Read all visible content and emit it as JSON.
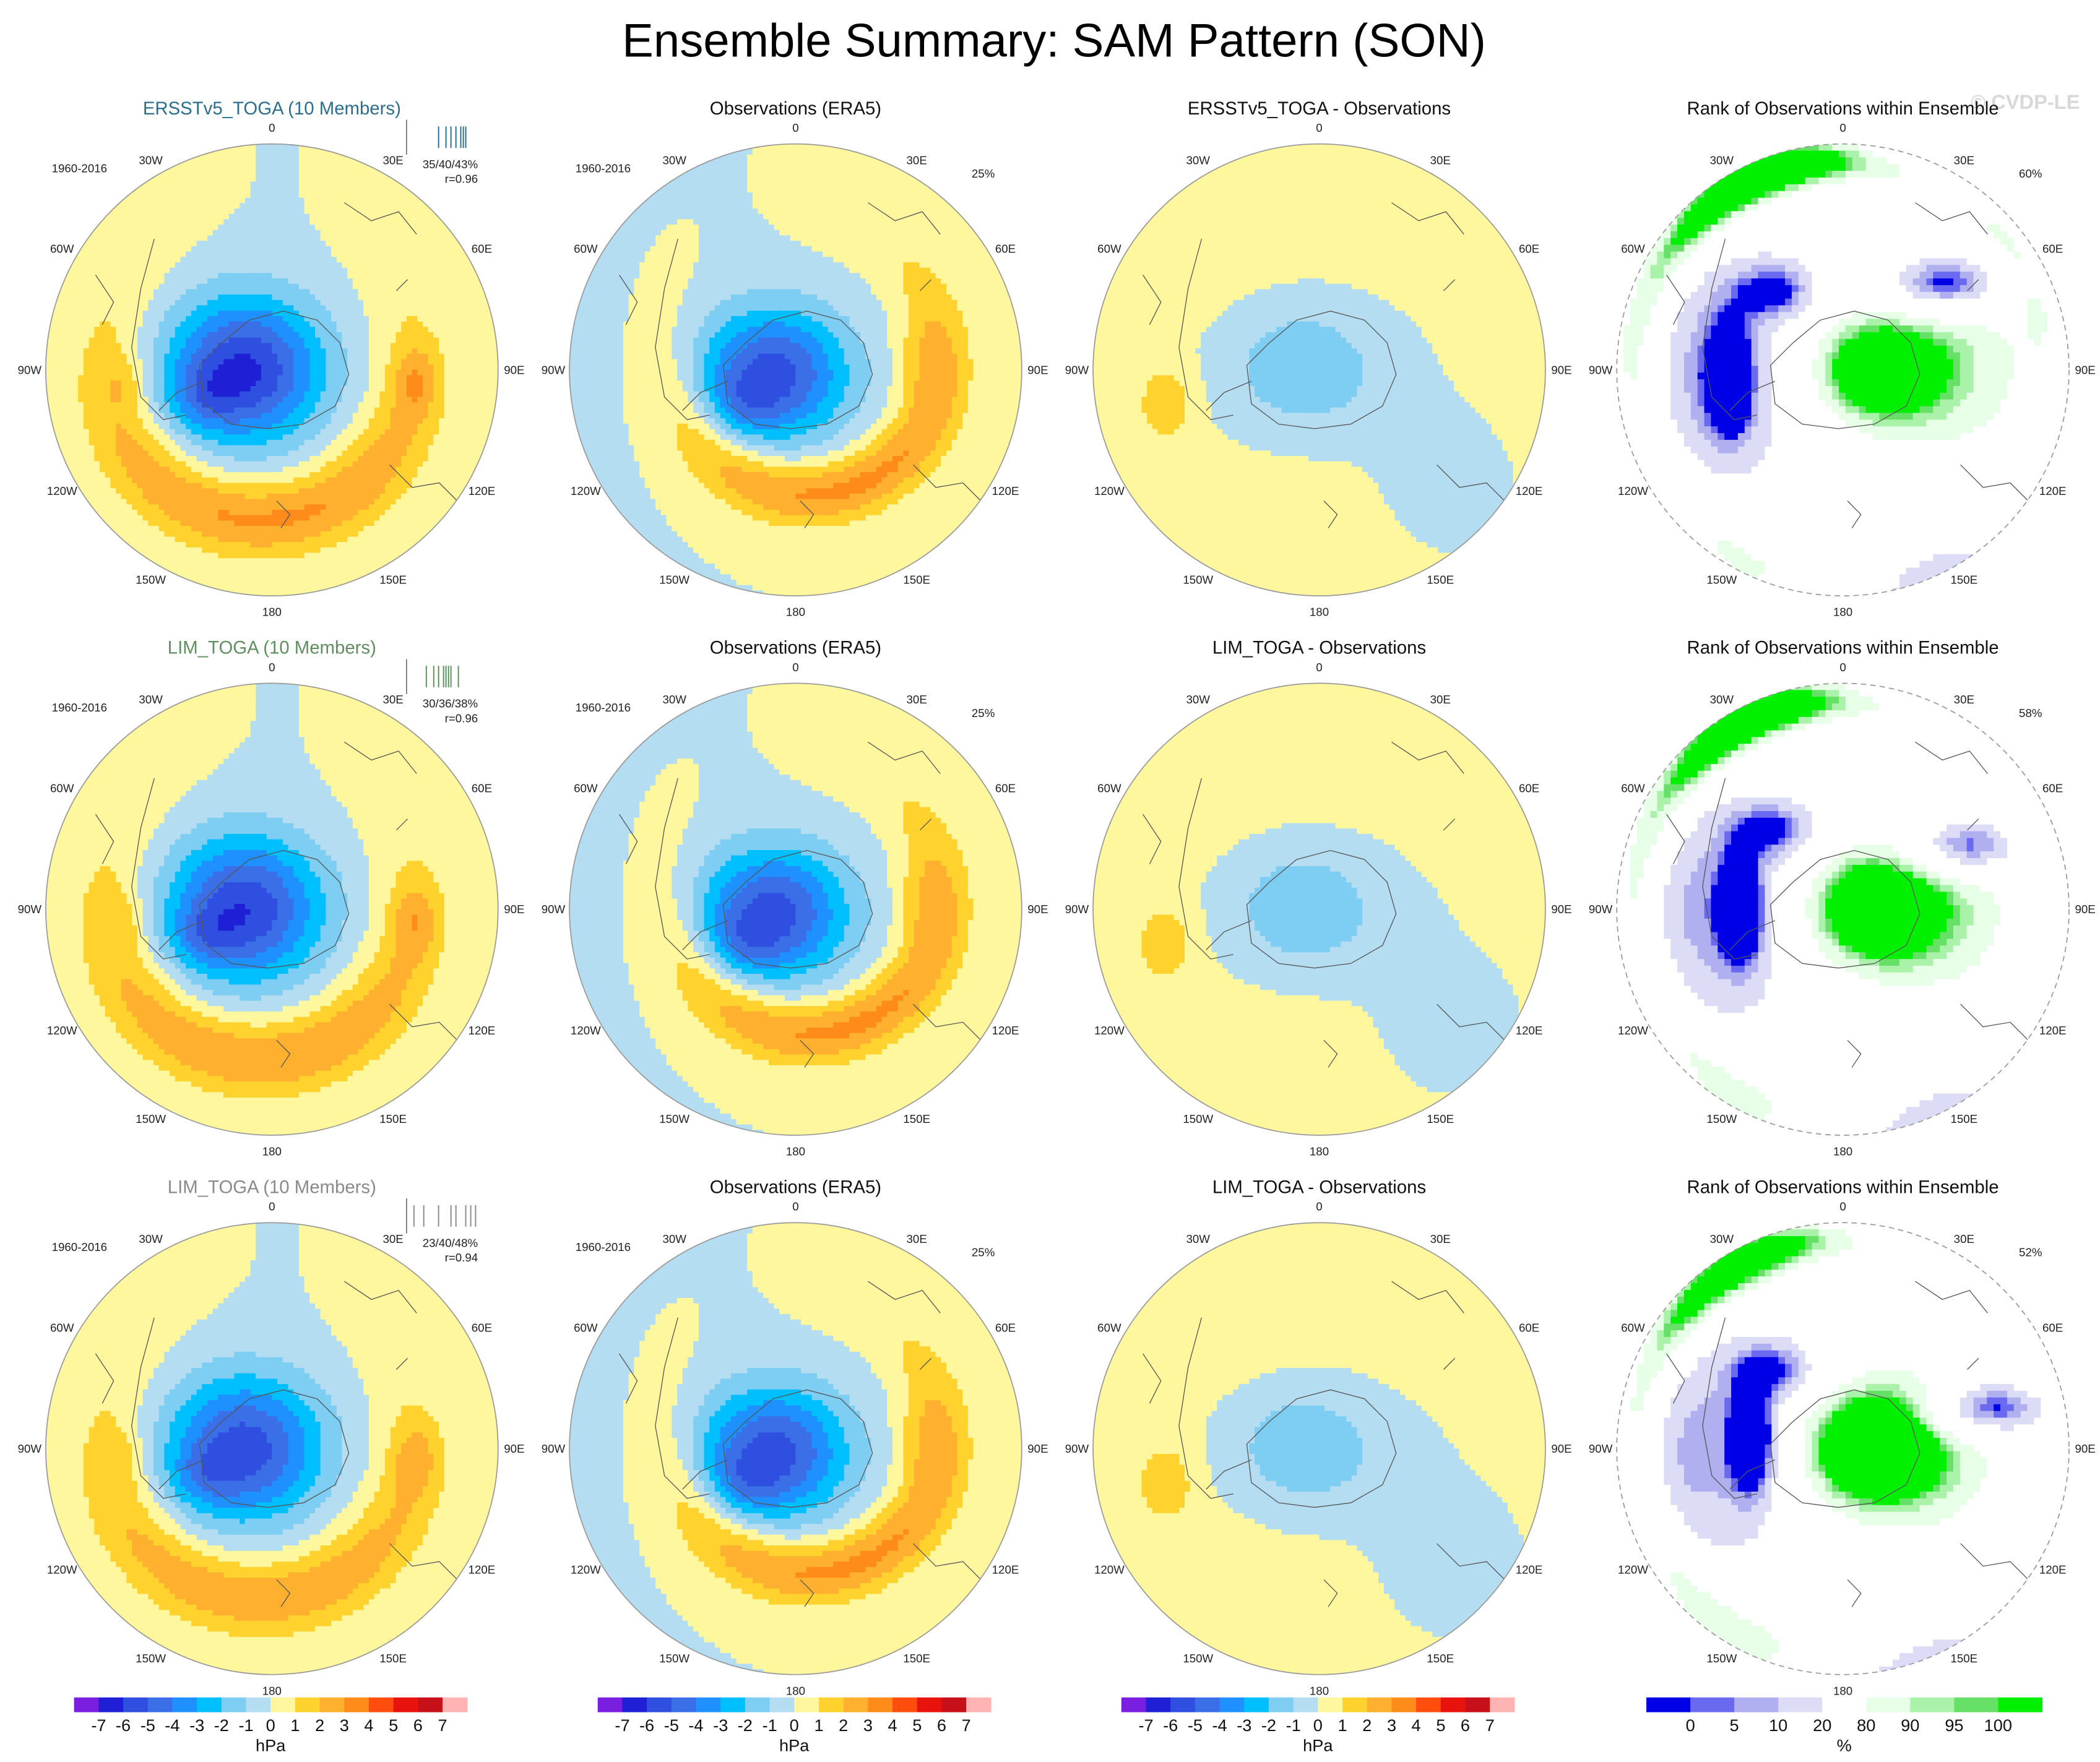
{
  "title": "Ensemble Summary: SAM Pattern (SON)",
  "watermark": "© CVDP-LE",
  "colors": {
    "ensemble_title_row1": "#2b6e8f",
    "ensemble_title_row2": "#5f8f5f",
    "ensemble_title_row3": "#8a8a8a",
    "hpa_scale": [
      "#7a1ee0",
      "#1f1fd6",
      "#2f4fe0",
      "#3a6fe8",
      "#1e90ff",
      "#00bfff",
      "#7ecdf2",
      "#b4ddf2",
      "#fff79e",
      "#ffd22e",
      "#ffb02e",
      "#ff8c1a",
      "#ff4d0d",
      "#e8130d",
      "#c8101a",
      "#ffb3b3"
    ],
    "pct_scale": [
      "#0000e6",
      "#6a6af0",
      "#b0b0f0",
      "#dcdcf7",
      "#ffffff",
      "#e6ffe6",
      "#aaf2aa",
      "#66e066",
      "#00f000"
    ]
  },
  "longitude_labels": [
    "0",
    "30E",
    "60E",
    "90E",
    "120E",
    "150E",
    "180",
    "150W",
    "120W",
    "90W",
    "60W",
    "30W"
  ],
  "chart_data": [
    {
      "type": "polar-map",
      "row": 1,
      "panels": [
        {
          "title": "ERSSTv5_TOGA (10 Members)",
          "period": "1960-2016",
          "stats": "35/40/43%",
          "corr": "r=0.96",
          "pattern": "model",
          "amp": 1.0,
          "member_ticks": [
            33,
            36,
            38,
            40,
            42,
            43,
            44
          ]
        },
        {
          "title": "Observations (ERA5)",
          "period": "1960-2016",
          "pct": "25%",
          "pattern": "obs"
        },
        {
          "title": "ERSSTv5_TOGA - Observations",
          "pattern": "diff",
          "variant": 1
        },
        {
          "title": "Rank of Observations within Ensemble",
          "pct": "60%",
          "pattern": "rank",
          "variant": 1
        }
      ]
    },
    {
      "type": "polar-map",
      "row": 2,
      "panels": [
        {
          "title": "LIM_TOGA (10 Members)",
          "period": "1960-2016",
          "stats": "30/36/38%",
          "corr": "r=0.96",
          "pattern": "model",
          "amp": 0.95,
          "member_ticks": [
            28,
            31,
            33,
            35,
            36,
            37,
            38,
            41
          ]
        },
        {
          "title": "Observations (ERA5)",
          "period": "1960-2016",
          "pct": "25%",
          "pattern": "obs"
        },
        {
          "title": "LIM_TOGA - Observations",
          "pattern": "diff",
          "variant": 2
        },
        {
          "title": "Rank of Observations within Ensemble",
          "pct": "58%",
          "pattern": "rank",
          "variant": 2
        }
      ]
    },
    {
      "type": "polar-map",
      "row": 3,
      "panels": [
        {
          "title": "LIM_TOGA (10 Members)",
          "period": "1960-2016",
          "stats": "23/40/48%",
          "corr": "r=0.94",
          "pattern": "model",
          "amp": 0.9,
          "member_ticks": [
            23,
            27,
            33,
            38,
            40,
            44,
            46,
            48
          ]
        },
        {
          "title": "Observations (ERA5)",
          "period": "1960-2016",
          "pct": "25%",
          "pattern": "obs"
        },
        {
          "title": "LIM_TOGA - Observations",
          "pattern": "diff",
          "variant": 3
        },
        {
          "title": "Rank of Observations within Ensemble",
          "pct": "52%",
          "pattern": "rank",
          "variant": 3
        }
      ]
    }
  ],
  "colorbars": [
    {
      "unit": "hPa",
      "tick_labels": [
        "-7",
        "-6",
        "-5",
        "-4",
        "-3",
        "-2",
        "-1",
        "0",
        "1",
        "2",
        "3",
        "4",
        "5",
        "6",
        "7"
      ]
    },
    {
      "unit": "hPa",
      "tick_labels": [
        "-7",
        "-6",
        "-5",
        "-4",
        "-3",
        "-2",
        "-1",
        "0",
        "1",
        "2",
        "3",
        "4",
        "5",
        "6",
        "7"
      ]
    },
    {
      "unit": "hPa",
      "tick_labels": [
        "-7",
        "-6",
        "-5",
        "-4",
        "-3",
        "-2",
        "-1",
        "0",
        "1",
        "2",
        "3",
        "4",
        "5",
        "6",
        "7"
      ]
    },
    {
      "unit": "%",
      "tick_labels": [
        "0",
        "5",
        "10",
        "20",
        "80",
        "90",
        "95",
        "100"
      ]
    }
  ]
}
